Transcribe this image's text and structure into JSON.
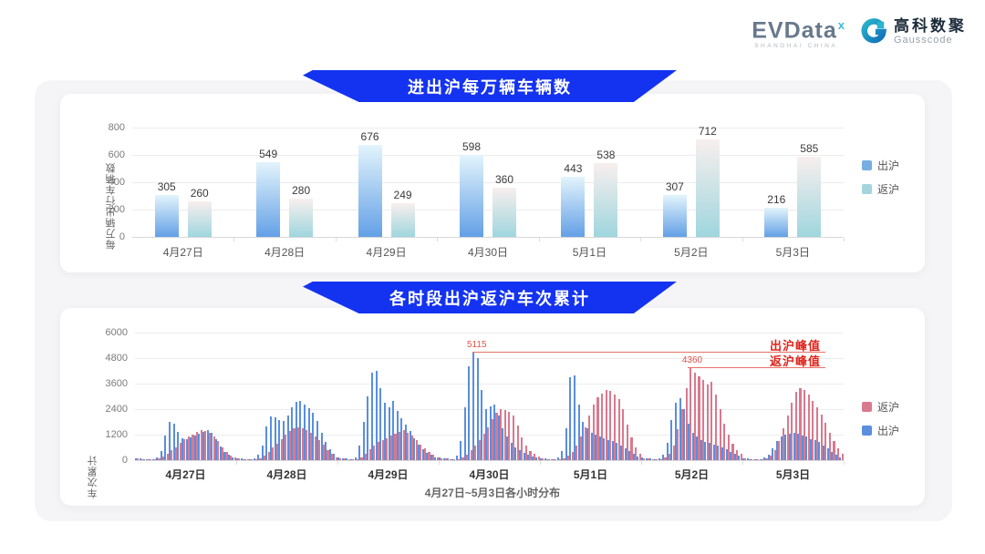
{
  "logo": {
    "evdata_text": "EVData",
    "evdata_sup": "x",
    "evdata_sub": "SHANGHAI CHINA",
    "gausscode_cn": "高科数聚",
    "gausscode_en": "Gausscode"
  },
  "colors": {
    "banner_blue": "#1433f0",
    "chu_bar_top": "#e3f4fc",
    "chu_bar_bottom": "#63a0e6",
    "fan_bar_top": "#f8efee",
    "fan_bar_bottom": "#9fd6de",
    "chu_solid": "#5a8ede",
    "fan_solid": "#d9798e",
    "legend_chu": "#76aee3",
    "legend_fan": "#a3d5dd",
    "annotation_text_red": "#e0231a",
    "annotation_line_red": "#e57368"
  },
  "chart_data": [
    {
      "type": "bar",
      "title": "进出沪每万辆车辆数",
      "ylabel": "每万辆出行车辆数",
      "xlabel": "",
      "categories": [
        "4月27日",
        "4月28日",
        "4月29日",
        "4月30日",
        "5月1日",
        "5月2日",
        "5月3日"
      ],
      "series": [
        {
          "name": "出沪",
          "values": [
            305,
            549,
            676,
            598,
            443,
            307,
            216
          ]
        },
        {
          "name": "返沪",
          "values": [
            260,
            280,
            249,
            360,
            538,
            712,
            585
          ]
        }
      ],
      "ylim": [
        0,
        800
      ],
      "yticks": [
        0,
        200,
        400,
        600,
        800
      ],
      "grid": true,
      "legend_position": "right",
      "legend": [
        "出沪",
        "返沪"
      ]
    },
    {
      "type": "bar",
      "title": "各时段出沪返沪车次累计",
      "ylabel": "车次累计",
      "xlabel": "4月27日~5月3日各小时分布",
      "categories": [
        "4月27日",
        "4月28日",
        "4月29日",
        "4月30日",
        "5月1日",
        "5月2日",
        "5月3日"
      ],
      "hours_per_day": 24,
      "ylim": [
        0,
        6000
      ],
      "yticks": [
        0,
        1200,
        2400,
        3600,
        4800,
        6000
      ],
      "grid": true,
      "legend_position": "right",
      "legend": [
        "返沪",
        "出沪"
      ],
      "series": [
        {
          "name": "出沪",
          "color": "#5a8ede",
          "values_by_day": [
            [
              90,
              70,
              50,
              45,
              60,
              150,
              420,
              1150,
              1800,
              1720,
              1350,
              1050,
              1000,
              1080,
              1150,
              1250,
              1350,
              1430,
              1280,
              980,
              640,
              400,
              240,
              120
            ],
            [
              100,
              80,
              60,
              55,
              90,
              260,
              700,
              1600,
              2050,
              2000,
              1900,
              1850,
              2100,
              2500,
              2750,
              2800,
              2600,
              2450,
              2250,
              1850,
              1300,
              850,
              520,
              280
            ],
            [
              140,
              100,
              75,
              60,
              130,
              700,
              1800,
              3000,
              4100,
              4200,
              3400,
              2700,
              2500,
              2800,
              2300,
              1980,
              1680,
              1380,
              1020,
              740,
              500,
              350,
              240,
              150
            ],
            [
              120,
              90,
              70,
              60,
              200,
              900,
              2500,
              4400,
              5115,
              4800,
              3300,
              2400,
              2550,
              2600,
              2100,
              1500,
              1100,
              820,
              620,
              460,
              350,
              260,
              180,
              120
            ],
            [
              100,
              80,
              60,
              50,
              150,
              450,
              1500,
              3900,
              4000,
              2600,
              1800,
              1500,
              1300,
              1200,
              1100,
              1020,
              950,
              900,
              800,
              700,
              550,
              420,
              300,
              180
            ],
            [
              120,
              90,
              70,
              60,
              80,
              260,
              800,
              1900,
              2700,
              2900,
              2400,
              1700,
              1300,
              1100,
              950,
              860,
              800,
              750,
              700,
              600,
              500,
              400,
              300,
              200
            ],
            [
              90,
              70,
              55,
              45,
              55,
              110,
              260,
              560,
              900,
              1100,
              1200,
              1260,
              1300,
              1250,
              1150,
              1100,
              1000,
              940,
              850,
              700,
              550,
              400,
              250,
              130
            ]
          ]
        },
        {
          "name": "返沪",
          "color": "#d9798e",
          "values_by_day": [
            [
              70,
              55,
              40,
              35,
              45,
              80,
              160,
              300,
              460,
              620,
              820,
              980,
              1120,
              1220,
              1320,
              1420,
              1380,
              1280,
              1120,
              880,
              580,
              370,
              220,
              110
            ],
            [
              80,
              60,
              50,
              40,
              55,
              100,
              200,
              380,
              580,
              780,
              1000,
              1200,
              1380,
              1480,
              1550,
              1500,
              1400,
              1280,
              1100,
              930,
              720,
              480,
              300,
              150
            ],
            [
              100,
              75,
              60,
              50,
              60,
              150,
              300,
              500,
              700,
              850,
              950,
              1050,
              1150,
              1250,
              1350,
              1400,
              1300,
              1150,
              950,
              740,
              550,
              400,
              270,
              150
            ],
            [
              90,
              70,
              55,
              50,
              60,
              130,
              260,
              460,
              700,
              960,
              1260,
              1560,
              1950,
              2250,
              2400,
              2350,
              2280,
              2080,
              1640,
              1080,
              700,
              450,
              290,
              170
            ],
            [
              80,
              60,
              50,
              45,
              55,
              100,
              210,
              400,
              700,
              1100,
              1550,
              2100,
              2600,
              2950,
              3150,
              3300,
              3250,
              3100,
              2880,
              2380,
              1680,
              1080,
              600,
              300
            ],
            [
              100,
              80,
              60,
              50,
              60,
              120,
              300,
              700,
              1450,
              2400,
              3400,
              4360,
              4100,
              3950,
              3780,
              3550,
              3680,
              3100,
              2400,
              1700,
              1180,
              780,
              480,
              290
            ],
            [
              80,
              60,
              50,
              40,
              50,
              95,
              210,
              460,
              920,
              1500,
              2100,
              2700,
              3200,
              3400,
              3300,
              3100,
              2800,
              2480,
              2150,
              1740,
              1300,
              880,
              540,
              280
            ]
          ]
        }
      ],
      "annotations": [
        {
          "series": "出沪",
          "label": "出沪峰值",
          "value": 5115
        },
        {
          "series": "返沪",
          "label": "返沪峰值",
          "value": 4360
        }
      ]
    }
  ]
}
